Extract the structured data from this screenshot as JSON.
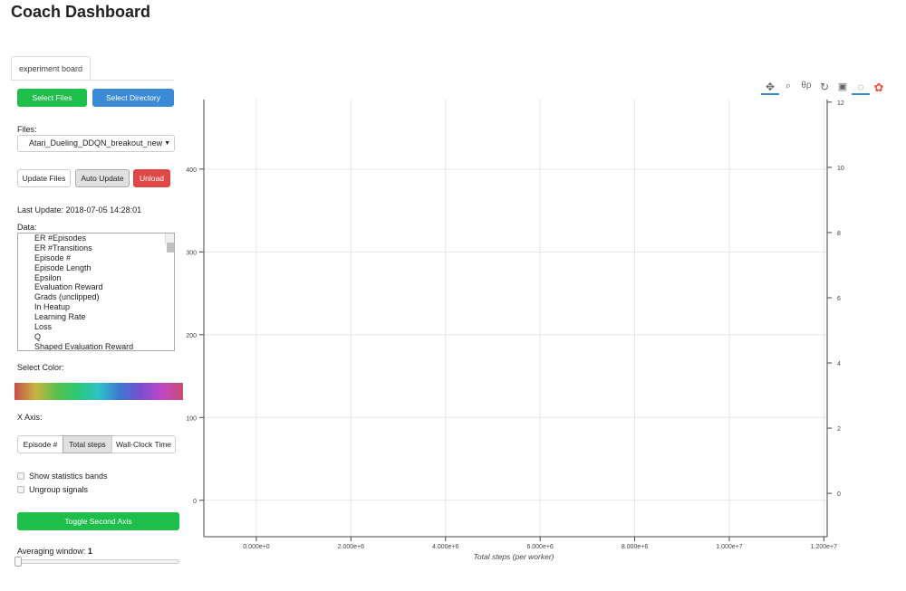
{
  "title": "Coach Dashboard",
  "tab": "experiment board",
  "buttons": {
    "select_files": "Select Files",
    "select_directory": "Select Directory",
    "update_files": "Update Files",
    "auto_update": "Auto Update",
    "unload": "Unload",
    "toggle_second_axis": "Toggle Second Axis"
  },
  "files_label": "Files:",
  "files_selected": "Atari_Dueling_DDQN_breakout_new",
  "last_update": "Last Update: 2018-07-05 14:28:01",
  "data_label": "Data:",
  "data_items": [
    "ER #Episodes",
    "ER #Transitions",
    "Episode #",
    "Episode Length",
    "Epsilon",
    "Evaluation Reward",
    "Grads (unclipped)",
    "In Heatup",
    "Learning Rate",
    "Loss",
    "Q",
    "Shaped Evaluation Reward"
  ],
  "select_color_label": "Select Color:",
  "x_axis_label": "X Axis:",
  "x_axis_options": [
    "Episode #",
    "Total steps",
    "Wall-Clock Time"
  ],
  "x_axis_selected": "Total steps",
  "checkboxes": [
    "Show statistics bands",
    "Ungroup signals"
  ],
  "averaging_label": "Averaging window:",
  "averaging_value": "1",
  "averaging_fraction": 0,
  "toolbar_icons": [
    "pan-icon",
    "box-zoom-icon",
    "wheel-zoom-icon",
    "reset-icon",
    "save-icon",
    "hover-icon",
    "color-wheel-icon"
  ],
  "colors": {
    "green": "#1ebe4a",
    "blue": "#3a8ad6",
    "red": "#e04848"
  },
  "chart_data": {
    "type": "line",
    "series": [],
    "xlabel": "Total steps (per worker)",
    "x_ticks": [
      "0.000e+0",
      "2.000e+6",
      "4.000e+6",
      "6.000e+6",
      "8.000e+6",
      "1.000e+7",
      "1.200e+7"
    ],
    "x_tick_values": [
      0,
      2000000,
      4000000,
      6000000,
      8000000,
      10000000,
      12000000
    ],
    "xlim": [
      -1110000,
      12070000
    ],
    "y_ticks": [
      "0",
      "100",
      "200",
      "300",
      "400"
    ],
    "y_tick_values": [
      0,
      100,
      200,
      300,
      400
    ],
    "ylim": [
      -44,
      484
    ],
    "y2_ticks": [
      "0",
      "2",
      "4",
      "6",
      "8",
      "10",
      "12"
    ],
    "y2_tick_values": [
      0,
      2,
      4,
      6,
      8,
      10,
      12
    ],
    "y2lim": [
      -1.33,
      12.08
    ],
    "grid": true
  }
}
